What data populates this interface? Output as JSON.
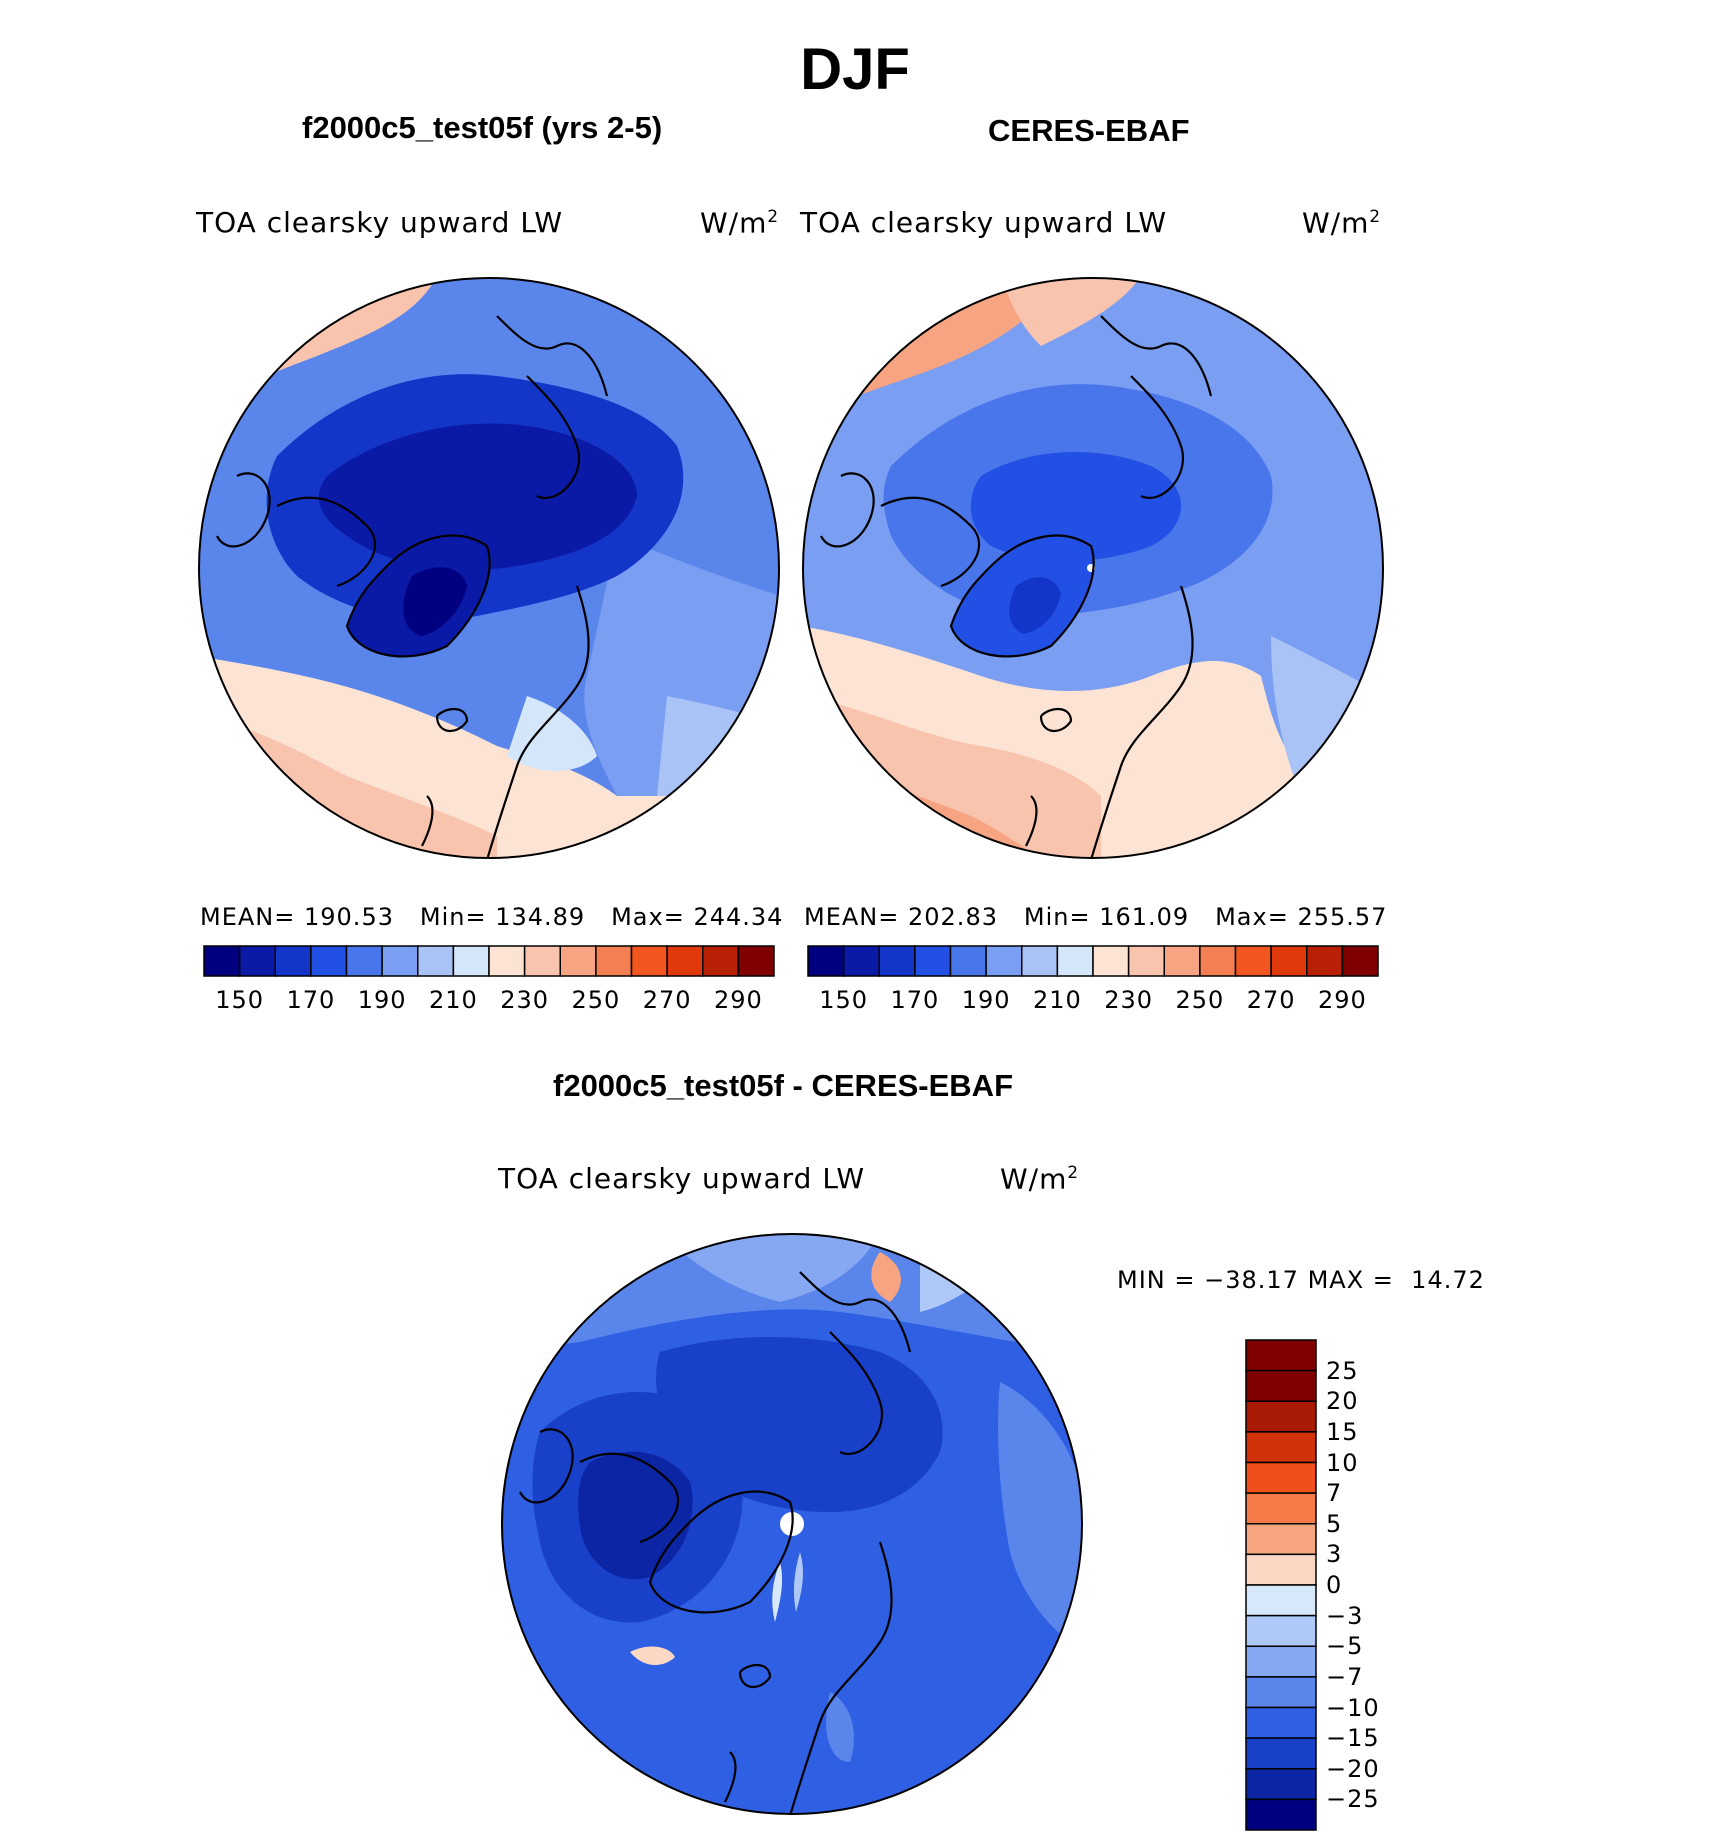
{
  "title": "DJF",
  "panels": [
    {
      "id": "model",
      "title": "f2000c5_test05f (yrs 2-5)",
      "variable": "TOA clearsky upward LW",
      "units_base": "W/m",
      "units_exp": "2",
      "stats": {
        "mean_label": "MEAN=",
        "mean": "190.53",
        "min_label": "Min=",
        "min": "134.89",
        "max_label": "Max=",
        "max": "244.34"
      },
      "colorbar": {
        "colors": [
          "#000080",
          "#0a1aa6",
          "#1436c8",
          "#2250e4",
          "#4a76ec",
          "#7a9ef2",
          "#a9c3f6",
          "#d4e6fa",
          "#fde3d3",
          "#f9c4ae",
          "#f6a482",
          "#f47f52",
          "#f3561e",
          "#e03a0c",
          "#b82106",
          "#800000"
        ],
        "tick_labels": [
          "150",
          "170",
          "190",
          "210",
          "230",
          "250",
          "270",
          "290"
        ]
      }
    },
    {
      "id": "obs",
      "title": "CERES-EBAF",
      "variable": "TOA clearsky upward LW",
      "units_base": "W/m",
      "units_exp": "2",
      "stats": {
        "mean_label": "MEAN=",
        "mean": "202.83",
        "min_label": "Min=",
        "min": "161.09",
        "max_label": "Max=",
        "max": "255.57"
      },
      "colorbar": {
        "colors": [
          "#000080",
          "#0a1aa6",
          "#1436c8",
          "#2250e4",
          "#4a76ec",
          "#7a9ef2",
          "#a9c3f6",
          "#d4e6fa",
          "#fde3d3",
          "#f9c4ae",
          "#f6a482",
          "#f47f52",
          "#f3561e",
          "#e03a0c",
          "#b82106",
          "#800000"
        ],
        "tick_labels": [
          "150",
          "170",
          "190",
          "210",
          "230",
          "250",
          "270",
          "290"
        ]
      }
    },
    {
      "id": "diff",
      "title": "f2000c5_test05f - CERES-EBAF",
      "variable": "TOA clearsky upward LW",
      "units_base": "W/m",
      "units_exp": "2",
      "stats": {
        "min_label": "MIN =",
        "min": "−38.17",
        "max_label": "MAX =",
        "max": "14.72"
      },
      "colorbar": {
        "colors": [
          "#800000",
          "#a81a04",
          "#d2320a",
          "#f04e1a",
          "#f47a48",
          "#f7a580",
          "#fbd8c4",
          "#d8e8fb",
          "#aec8f7",
          "#86a8f2",
          "#5a86ec",
          "#2f5fe2",
          "#1840c8",
          "#0c25a4",
          "#000080"
        ],
        "tick_labels": [
          "25",
          "20",
          "15",
          "10",
          "7",
          "5",
          "3",
          "0",
          "−3",
          "−5",
          "−7",
          "−10",
          "−15",
          "−20",
          "−25"
        ]
      }
    }
  ]
}
